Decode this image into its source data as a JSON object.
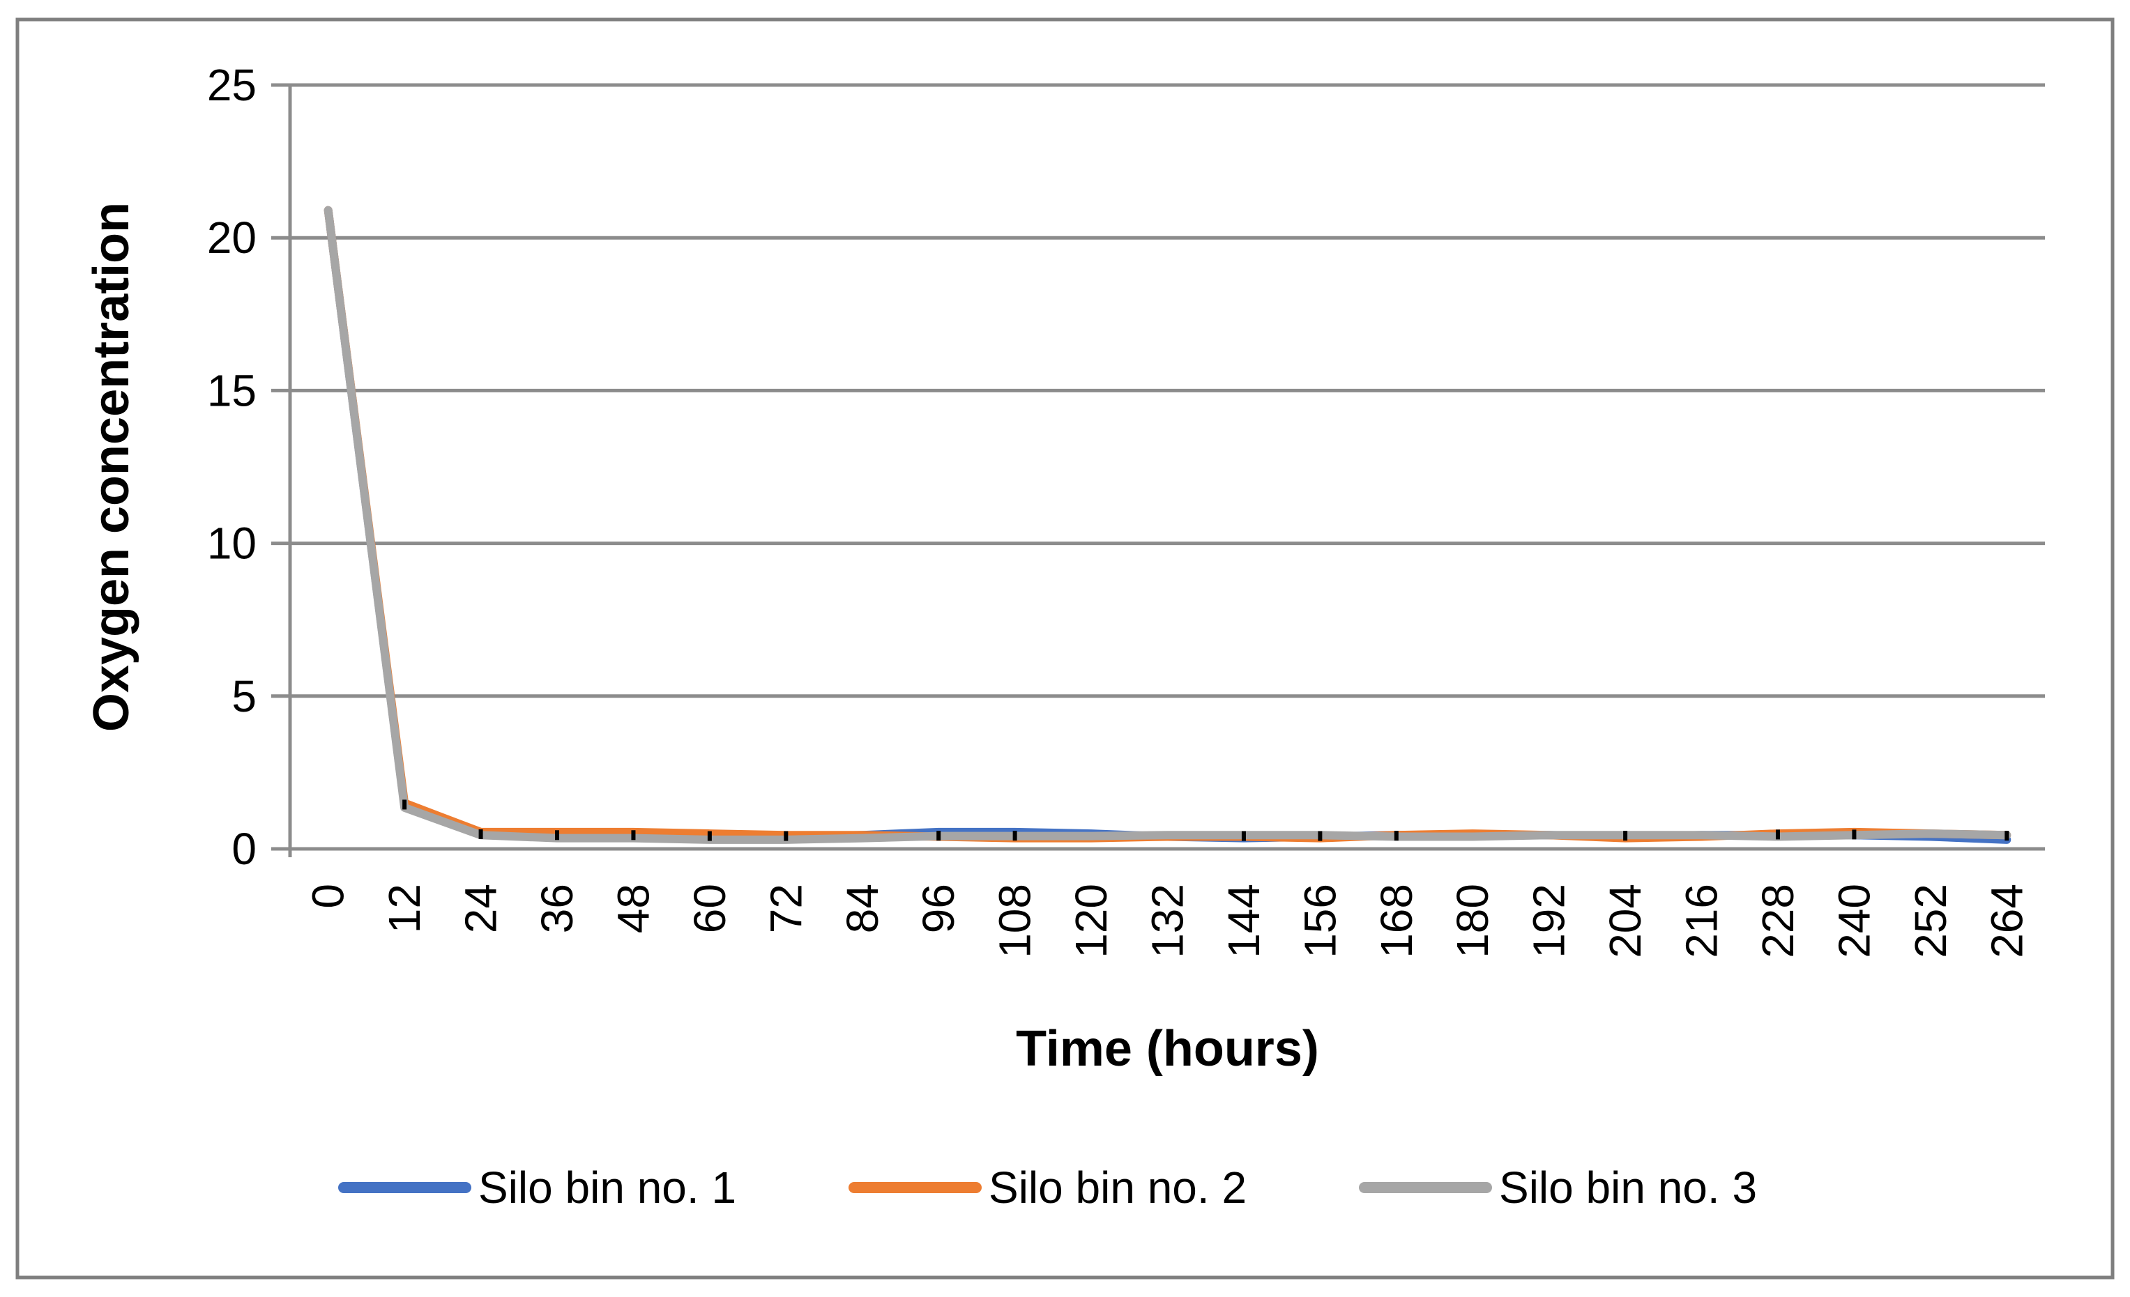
{
  "chart_data": {
    "type": "line",
    "title": "",
    "xlabel": "Time (hours)",
    "ylabel": "Oxygen concentration",
    "x": [
      0,
      12,
      24,
      36,
      48,
      60,
      72,
      84,
      96,
      108,
      120,
      132,
      144,
      156,
      168,
      180,
      192,
      204,
      216,
      228,
      240,
      252,
      264
    ],
    "ylim": [
      0,
      25
    ],
    "yticks": [
      0,
      5,
      10,
      15,
      20,
      25
    ],
    "grid": true,
    "legend_position": "bottom",
    "series": [
      {
        "name": "Silo bin no. 1",
        "color": "#4472C4",
        "values": [
          20.9,
          1.4,
          0.5,
          0.45,
          0.45,
          0.4,
          0.4,
          0.45,
          0.55,
          0.55,
          0.5,
          0.4,
          0.35,
          0.4,
          0.45,
          0.45,
          0.45,
          0.4,
          0.45,
          0.45,
          0.45,
          0.4,
          0.3
        ]
      },
      {
        "name": "Silo bin no. 2",
        "color": "#ED7D31",
        "values": [
          20.9,
          1.5,
          0.55,
          0.55,
          0.55,
          0.5,
          0.45,
          0.45,
          0.4,
          0.35,
          0.35,
          0.4,
          0.4,
          0.35,
          0.45,
          0.5,
          0.45,
          0.35,
          0.4,
          0.5,
          0.55,
          0.5,
          0.45
        ]
      },
      {
        "name": "Silo bin no. 3",
        "color": "#A6A6A6",
        "values": [
          20.9,
          1.35,
          0.45,
          0.35,
          0.35,
          0.3,
          0.3,
          0.35,
          0.42,
          0.42,
          0.42,
          0.45,
          0.45,
          0.45,
          0.4,
          0.4,
          0.45,
          0.45,
          0.45,
          0.4,
          0.45,
          0.5,
          0.45
        ]
      }
    ],
    "point_dashes": {
      "color": "#000000",
      "points": [
        [
          12,
          1.45
        ],
        [
          24,
          0.48
        ],
        [
          36,
          0.45
        ],
        [
          48,
          0.45
        ],
        [
          60,
          0.42
        ],
        [
          72,
          0.42
        ],
        [
          96,
          0.43
        ],
        [
          108,
          0.43
        ],
        [
          144,
          0.42
        ],
        [
          156,
          0.42
        ],
        [
          168,
          0.43
        ],
        [
          204,
          0.43
        ],
        [
          228,
          0.47
        ],
        [
          240,
          0.47
        ],
        [
          264,
          0.43
        ]
      ]
    }
  },
  "colors": {
    "axis": "#8C8C8C",
    "gridline": "#8C8C8C",
    "frame_border": "#7F7F7F",
    "background": "#FFFFFF",
    "text": "#000000"
  }
}
